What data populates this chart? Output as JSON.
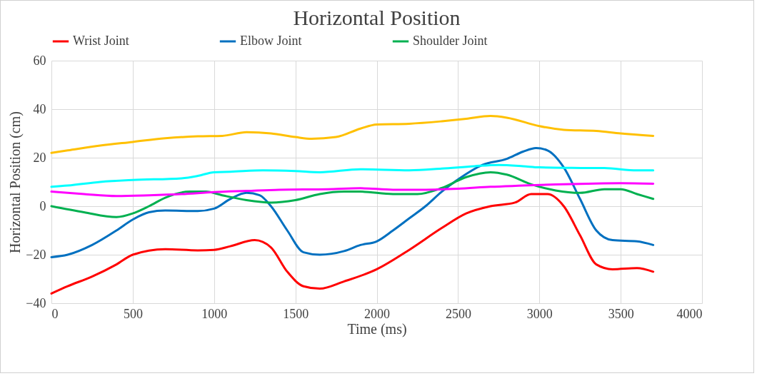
{
  "chart_data": {
    "type": "line",
    "title": "Horizontal Position",
    "xlabel": "Time (ms)",
    "ylabel": "Horizontal Position (cm)",
    "xlim": [
      0,
      4000
    ],
    "xticks": [
      0,
      500,
      1000,
      1500,
      2000,
      2500,
      3000,
      3500,
      4000
    ],
    "ylim": [
      -40,
      60
    ],
    "yticks": [
      -40,
      -20,
      0,
      20,
      40,
      60
    ],
    "grid": true,
    "legend": "top",
    "series": [
      {
        "name": "Wrist Joint",
        "color": "#ff0000",
        "x": [
          0,
          100,
          250,
          400,
          500,
          700,
          900,
          1000,
          1100,
          1250,
          1350,
          1450,
          1550,
          1650,
          1800,
          2000,
          2200,
          2400,
          2550,
          2700,
          2850,
          2950,
          3050,
          3150,
          3250,
          3350,
          3450,
          3600,
          3700
        ],
        "values": [
          -36,
          -33,
          -29,
          -24,
          -20,
          -17.7,
          -18.2,
          -18,
          -16.5,
          -14,
          -17,
          -27,
          -33,
          -34,
          -31,
          -26,
          -18,
          -9,
          -3,
          0,
          1.5,
          5,
          5,
          0,
          -12,
          -24,
          -26,
          -25.5,
          -27
        ]
      },
      {
        "name": "Elbow Joint",
        "color": "#0070c0",
        "x": [
          0,
          100,
          250,
          400,
          500,
          600,
          700,
          900,
          1000,
          1100,
          1200,
          1280,
          1350,
          1450,
          1550,
          1650,
          1800,
          1900,
          2000,
          2100,
          2200,
          2300,
          2400,
          2500,
          2650,
          2800,
          2900,
          2980,
          3050,
          3150,
          3250,
          3350,
          3450,
          3600,
          3700
        ],
        "values": [
          -21,
          -20,
          -16,
          -10,
          -5.5,
          -2.5,
          -1.8,
          -2,
          -1,
          3,
          5.5,
          4.5,
          0,
          -10,
          -19,
          -20,
          -18.5,
          -16,
          -14.5,
          -10,
          -5,
          0,
          6,
          11,
          17,
          19.5,
          22.5,
          24,
          23,
          16,
          3,
          -10,
          -14,
          -14.5,
          -16
        ]
      },
      {
        "name": "Shoulder Joint",
        "color": "#00b050",
        "x": [
          0,
          200,
          400,
          500,
          600,
          700,
          850,
          950,
          1050,
          1200,
          1350,
          1500,
          1650,
          1800,
          1900,
          2100,
          2250,
          2400,
          2550,
          2700,
          2800,
          2950,
          3100,
          3250,
          3400,
          3500,
          3600,
          3700
        ],
        "values": [
          0,
          -2.5,
          -4.5,
          -3,
          0,
          3.5,
          6,
          6,
          4.5,
          2.5,
          1.5,
          2.5,
          5,
          6,
          6,
          5,
          5,
          7.5,
          12,
          14,
          13,
          9,
          6.5,
          5.5,
          7,
          7,
          5,
          3
        ]
      },
      {
        "color": "#ffc000",
        "x": [
          0,
          100,
          300,
          500,
          700,
          900,
          1050,
          1200,
          1350,
          1500,
          1600,
          1750,
          1900,
          2000,
          2200,
          2400,
          2550,
          2700,
          2800,
          3000,
          3150,
          3350,
          3500,
          3700
        ],
        "values": [
          22,
          23,
          25,
          26.5,
          28,
          28.8,
          29,
          30.5,
          30,
          28.5,
          27.8,
          28.5,
          32,
          33.7,
          34,
          35,
          36,
          37.2,
          36.5,
          33,
          31.5,
          31,
          30,
          29
        ]
      },
      {
        "color": "#00ffff",
        "x": [
          0,
          100,
          300,
          500,
          800,
          900,
          1000,
          1100,
          1300,
          1500,
          1650,
          1900,
          2200,
          2400,
          2600,
          2750,
          2900,
          3000,
          3200,
          3400,
          3600,
          3700
        ],
        "values": [
          8,
          8.5,
          10,
          10.8,
          11.5,
          12.5,
          14,
          14.2,
          14.8,
          14.5,
          14,
          15.2,
          14.8,
          15.5,
          16.5,
          17,
          16.5,
          16,
          15.8,
          15.7,
          14.8,
          14.8
        ]
      },
      {
        "color": "#ff00ff",
        "x": [
          0,
          200,
          400,
          600,
          800,
          1000,
          1200,
          1400,
          1700,
          1900,
          2100,
          2300,
          2500,
          2700,
          2900,
          3100,
          3300,
          3500,
          3700
        ],
        "values": [
          6,
          5,
          4.2,
          4.5,
          5,
          5.8,
          6.3,
          6.8,
          7,
          7.4,
          6.8,
          6.8,
          7.2,
          8,
          8.5,
          9,
          9.3,
          9.5,
          9.3
        ]
      }
    ]
  }
}
